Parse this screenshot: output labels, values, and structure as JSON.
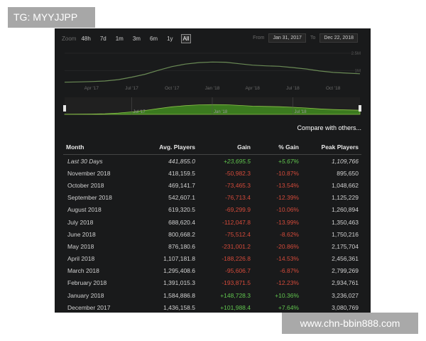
{
  "overlay": {
    "tg_badge": "TG: MYYJJPP",
    "watermark": "www.chn-bbin888.com"
  },
  "toolbar": {
    "zoom_label": "Zoom",
    "zoom_buttons": [
      "48h",
      "7d",
      "1m",
      "3m",
      "6m",
      "1y",
      "All"
    ],
    "active_zoom": "All",
    "from_label": "From",
    "from_date": "Jan 31, 2017",
    "to_label": "To",
    "to_date": "Dec 22, 2018"
  },
  "chart_data": {
    "type": "area",
    "x_ticks": [
      "Apr '17",
      "Jul '17",
      "Oct '17",
      "Jan '18",
      "Apr '18",
      "Jul '18",
      "Oct '18"
    ],
    "y_ticks": [
      "2.5M",
      "1M"
    ],
    "navigator_ticks": [
      "Jul '17",
      "Jan '18",
      "Jul '18"
    ],
    "x": [
      "Feb '17",
      "Mar '17",
      "Apr '17",
      "May '17",
      "Jun '17",
      "Jul '17",
      "Aug '17",
      "Sep '17",
      "Oct '17",
      "Nov '17",
      "Dec '17",
      "Jan '18",
      "Feb '18",
      "Mar '18",
      "Apr '18",
      "May '18",
      "Jun '18",
      "Jul '18",
      "Aug '18",
      "Sep '18",
      "Oct '18",
      "Nov '18",
      "Dec '18"
    ],
    "values": [
      0.02,
      0.04,
      0.07,
      0.12,
      0.24,
      0.45,
      0.7,
      1.05,
      1.36,
      1.57,
      1.7,
      1.75,
      1.73,
      1.6,
      1.48,
      1.42,
      1.38,
      1.27,
      1.15,
      0.98,
      0.86,
      0.8,
      0.74
    ],
    "ylim": [
      0,
      2.8
    ],
    "colors": {
      "line": "#6a8a55",
      "fill": "#3b7a1f",
      "nav_line": "#8bc34a"
    }
  },
  "compare_link": "Compare with others...",
  "table": {
    "headers": [
      "Month",
      "Avg. Players",
      "Gain",
      "% Gain",
      "Peak Players"
    ],
    "rows": [
      {
        "month": "Last 30 Days",
        "avg": "441,855.0",
        "gain": "+23,695.5",
        "pct": "+5.67%",
        "peak": "1,109,766",
        "trend": "pos"
      },
      {
        "month": "November 2018",
        "avg": "418,159.5",
        "gain": "-50,982.3",
        "pct": "-10.87%",
        "peak": "895,650",
        "trend": "neg"
      },
      {
        "month": "October 2018",
        "avg": "469,141.7",
        "gain": "-73,465.3",
        "pct": "-13.54%",
        "peak": "1,048,662",
        "trend": "neg"
      },
      {
        "month": "September 2018",
        "avg": "542,607.1",
        "gain": "-76,713.4",
        "pct": "-12.39%",
        "peak": "1,125,229",
        "trend": "neg"
      },
      {
        "month": "August 2018",
        "avg": "619,320.5",
        "gain": "-69,299.9",
        "pct": "-10.06%",
        "peak": "1,260,894",
        "trend": "neg"
      },
      {
        "month": "July 2018",
        "avg": "688,620.4",
        "gain": "-112,047.8",
        "pct": "-13.99%",
        "peak": "1,350,463",
        "trend": "neg"
      },
      {
        "month": "June 2018",
        "avg": "800,668.2",
        "gain": "-75,512.4",
        "pct": "-8.62%",
        "peak": "1,750,216",
        "trend": "neg"
      },
      {
        "month": "May 2018",
        "avg": "876,180.6",
        "gain": "-231,001.2",
        "pct": "-20.86%",
        "peak": "2,175,704",
        "trend": "neg"
      },
      {
        "month": "April 2018",
        "avg": "1,107,181.8",
        "gain": "-188,226.8",
        "pct": "-14.53%",
        "peak": "2,456,361",
        "trend": "neg"
      },
      {
        "month": "March 2018",
        "avg": "1,295,408.6",
        "gain": "-95,606.7",
        "pct": "-6.87%",
        "peak": "2,799,269",
        "trend": "neg"
      },
      {
        "month": "February 2018",
        "avg": "1,391,015.3",
        "gain": "-193,871.5",
        "pct": "-12.23%",
        "peak": "2,934,761",
        "trend": "neg"
      },
      {
        "month": "January 2018",
        "avg": "1,584,886.8",
        "gain": "+148,728.3",
        "pct": "+10.36%",
        "peak": "3,236,027",
        "trend": "pos"
      },
      {
        "month": "December 2017",
        "avg": "1,436,158.5",
        "gain": "+101,988.4",
        "pct": "+7.64%",
        "peak": "3,080,769",
        "trend": "pos"
      }
    ]
  }
}
